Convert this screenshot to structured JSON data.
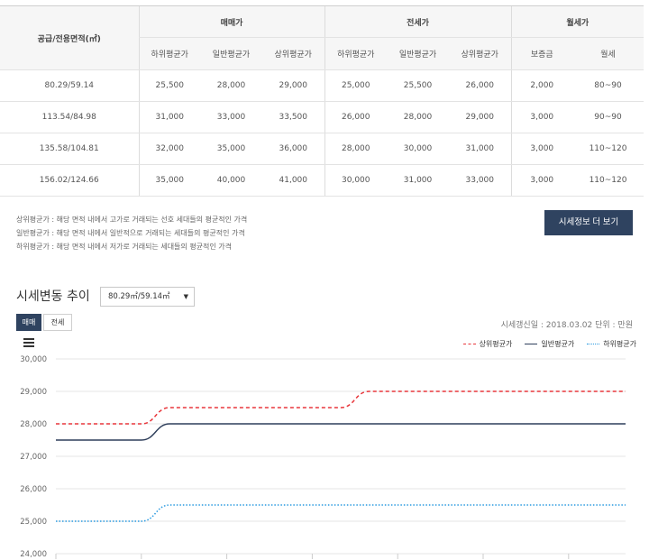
{
  "table": {
    "area_header": "공급/전용면적(㎡)",
    "groups": [
      "매매가",
      "전세가",
      "월세가"
    ],
    "sub_headers": [
      "하위평균가",
      "일반평균가",
      "상위평균가",
      "하위평균가",
      "일반평균가",
      "상위평균가",
      "보증금",
      "월세"
    ],
    "rows": [
      [
        "80.29/59.14",
        "25,500",
        "28,000",
        "29,000",
        "25,000",
        "25,500",
        "26,000",
        "2,000",
        "80~90"
      ],
      [
        "113.54/84.98",
        "31,000",
        "33,000",
        "33,500",
        "26,000",
        "28,000",
        "29,000",
        "3,000",
        "90~90"
      ],
      [
        "135.58/104.81",
        "32,000",
        "35,000",
        "36,000",
        "28,000",
        "30,000",
        "31,000",
        "3,000",
        "110~120"
      ],
      [
        "156.02/124.66",
        "35,000",
        "40,000",
        "41,000",
        "30,000",
        "31,000",
        "33,000",
        "3,000",
        "110~120"
      ]
    ]
  },
  "notes": [
    "상위평균가 : 해당 면적 내에서 고가로 거래되는 선호 세대들의 평균적인 가격",
    "일반평균가 : 해당 면적 내에서 일반적으로 거래되는 세대들의 평균적인 가격",
    "하위평균가 : 해당 면적 내에서 저가로 거래되는 세대들의 평균적인 가격"
  ],
  "more_button": "시세정보 더 보기",
  "trend": {
    "title": "시세변동 추이",
    "selected_area": "80.29㎡/59.14㎡",
    "tabs": [
      "매매",
      "전세"
    ],
    "active_tab": "매매",
    "update_info": "시세갱신일 : 2018.03.02   단위 : 만원"
  },
  "colors": {
    "upper": "#e8363b",
    "normal": "#2f3f5b",
    "lower": "#2a9ae0",
    "accent": "#2f4360"
  },
  "chart_data": {
    "type": "line",
    "y_ticks": [
      "30,000",
      "29,000",
      "28,000",
      "27,000",
      "26,000",
      "25,000",
      "24,000"
    ],
    "ylim": [
      24000,
      30000
    ],
    "grid": true,
    "legend_position": "top-right",
    "series": [
      {
        "name": "상위평균가",
        "style": "dashed",
        "color": "#e8363b",
        "values": [
          28000,
          28000,
          28000,
          28000,
          28500,
          28500,
          28500,
          28500,
          28500,
          28500,
          28500,
          29000,
          29000,
          29000,
          29000,
          29000,
          29000,
          29000,
          29000,
          29000,
          29000
        ]
      },
      {
        "name": "일반평균가",
        "style": "solid",
        "color": "#2f3f5b",
        "values": [
          27500,
          27500,
          27500,
          27500,
          28000,
          28000,
          28000,
          28000,
          28000,
          28000,
          28000,
          28000,
          28000,
          28000,
          28000,
          28000,
          28000,
          28000,
          28000,
          28000,
          28000
        ]
      },
      {
        "name": "하위평균가",
        "style": "dotted",
        "color": "#2a9ae0",
        "values": [
          25000,
          25000,
          25000,
          25000,
          25500,
          25500,
          25500,
          25500,
          25500,
          25500,
          25500,
          25500,
          25500,
          25500,
          25500,
          25500,
          25500,
          25500,
          25500,
          25500,
          25500
        ]
      }
    ]
  }
}
